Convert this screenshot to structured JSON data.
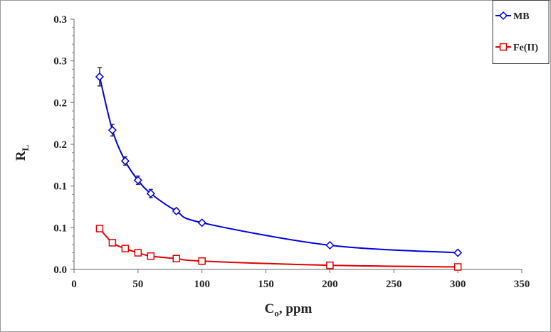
{
  "chart_data": {
    "type": "line",
    "x_label": {
      "main": "C",
      "sub": "o",
      "rest": ", ppm"
    },
    "y_label": {
      "main": "R",
      "sub": "L"
    },
    "xlim": [
      0,
      350
    ],
    "xticks": [
      0,
      50,
      100,
      150,
      200,
      250,
      300,
      350
    ],
    "ylim": [
      0,
      0.3
    ],
    "yticks": [
      {
        "value": 0,
        "label": "0.0"
      },
      {
        "value": 0.05,
        "label": "0.1"
      },
      0.1,
      {
        "value": 0.15,
        "label": "0.2"
      },
      0.2,
      {
        "value": 0.25,
        "label": "0.3"
      },
      0.3
    ],
    "legend": "top-right",
    "series": [
      {
        "name": "MB",
        "color": "#0000e0",
        "marker": "diamond",
        "x": [
          20,
          30,
          40,
          50,
          60,
          80,
          100,
          200,
          300
        ],
        "values": [
          0.231,
          0.167,
          0.13,
          0.107,
          0.091,
          0.07,
          0.056,
          0.029,
          0.02
        ],
        "errors": [
          0.011,
          0.007,
          0.005,
          0.005,
          0.005,
          0.003,
          0.002,
          0.002,
          0.002
        ]
      },
      {
        "name": "Fe(II)",
        "color": "#e00000",
        "marker": "square",
        "x": [
          20,
          30,
          40,
          50,
          60,
          80,
          100,
          200,
          300
        ],
        "values": [
          0.049,
          0.032,
          0.025,
          0.02,
          0.016,
          0.013,
          0.01,
          0.005,
          0.003
        ]
      }
    ]
  }
}
